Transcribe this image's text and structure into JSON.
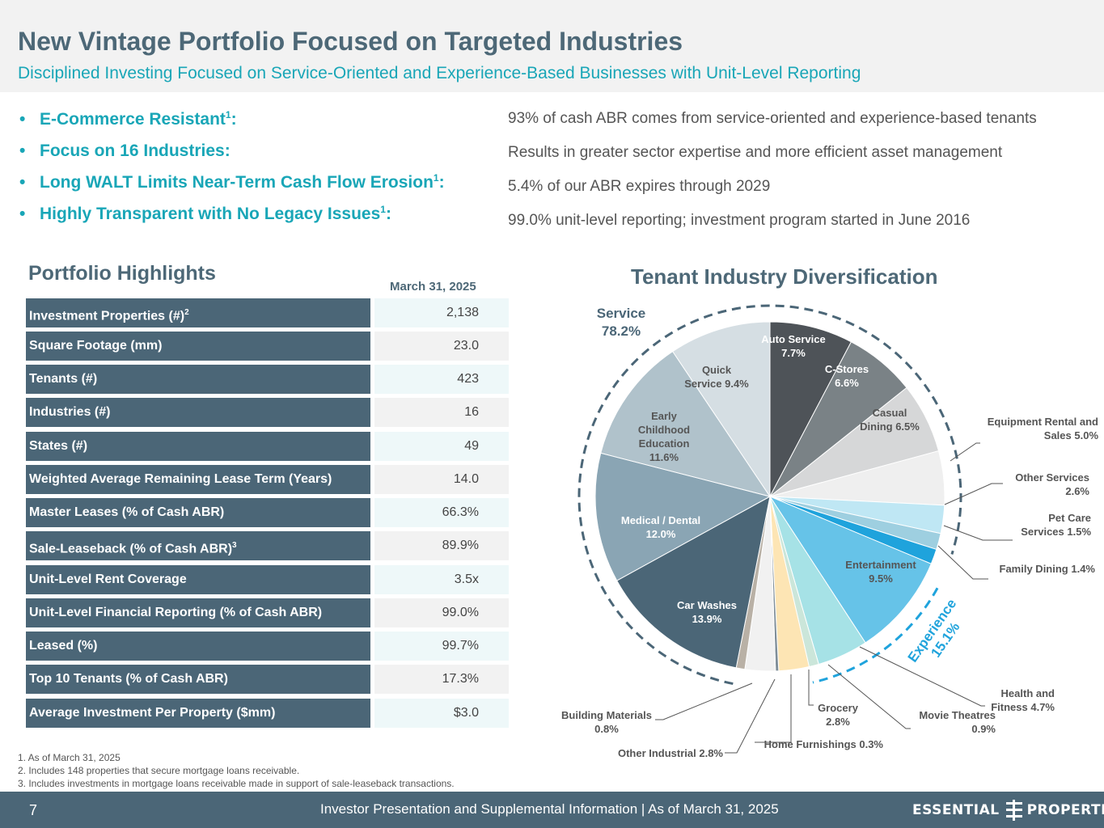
{
  "header": {
    "title": "New Vintage Portfolio Focused on Targeted Industries",
    "subtitle": "Disciplined Investing Focused on Service-Oriented and Experience-Based Businesses with Unit-Level Reporting"
  },
  "bullets": [
    {
      "label": "E-Commerce Resistant",
      "sup": "1",
      "text": "93% of cash ABR comes from service-oriented and experience-based tenants"
    },
    {
      "label": "Focus on 16 Industries:",
      "sup": "",
      "text": "Results in greater sector expertise and more efficient asset management"
    },
    {
      "label": "Long WALT Limits Near-Term Cash Flow Erosion",
      "sup": "1",
      "text": "5.4% of our ABR expires through 2029"
    },
    {
      "label": "Highly Transparent with No Legacy Issues",
      "sup": "1",
      "text": "99.0% unit-level reporting; investment program started in June 2016"
    }
  ],
  "highlights": {
    "title": "Portfolio Highlights",
    "date_header": "March 31, 2025",
    "rows": [
      {
        "label": "Investment Properties (#)",
        "sup": "2",
        "value": "2,138"
      },
      {
        "label": "Square Footage (mm)",
        "sup": "",
        "value": "23.0"
      },
      {
        "label": "Tenants (#)",
        "sup": "",
        "value": "423"
      },
      {
        "label": "Industries (#)",
        "sup": "",
        "value": "16"
      },
      {
        "label": "States (#)",
        "sup": "",
        "value": "49"
      },
      {
        "label": "Weighted Average Remaining Lease Term (Years)",
        "sup": "",
        "value": "14.0"
      },
      {
        "label": "Master Leases (% of Cash ABR)",
        "sup": "",
        "value": "66.3%"
      },
      {
        "label": "Sale-Leaseback (% of Cash ABR)",
        "sup": "3",
        "value": "89.9%"
      },
      {
        "label": "Unit-Level Rent Coverage",
        "sup": "",
        "value": "3.5x"
      },
      {
        "label": "Unit-Level Financial Reporting (% of Cash ABR)",
        "sup": "",
        "value": "99.0%"
      },
      {
        "label": "Leased (%)",
        "sup": "",
        "value": "99.7%"
      },
      {
        "label": "Top 10 Tenants (% of Cash ABR)",
        "sup": "",
        "value": "17.3%"
      },
      {
        "label": "Average Investment Per Property ($mm)",
        "sup": "",
        "value": "$3.0"
      }
    ]
  },
  "chart_data": {
    "type": "pie",
    "title": "Tenant Industry Diversification",
    "groups": [
      {
        "name": "Service",
        "value": "78.2%"
      },
      {
        "name": "Experience",
        "value": "15.1%"
      }
    ],
    "slices": [
      {
        "name": "Auto Service",
        "value": 7.7,
        "color": "#4e5358"
      },
      {
        "name": "C-Stores",
        "value": 6.6,
        "color": "#7a8286"
      },
      {
        "name": "Casual Dining",
        "value": 6.5,
        "color": "#d6d7d8"
      },
      {
        "name": "Equipment Rental and Sales",
        "value": 5.0,
        "color": "#efefef"
      },
      {
        "name": "Other Services",
        "value": 2.6,
        "color": "#bfe7f4"
      },
      {
        "name": "Pet Care Services",
        "value": 1.5,
        "color": "#9ecfe0"
      },
      {
        "name": "Family Dining",
        "value": 1.4,
        "color": "#1fa3dc"
      },
      {
        "name": "Entertainment",
        "value": 9.5,
        "color": "#66c3e8"
      },
      {
        "name": "Health and Fitness",
        "value": 4.7,
        "color": "#a6e2e6"
      },
      {
        "name": "Movie Theatres",
        "value": 0.9,
        "color": "#cbe6da"
      },
      {
        "name": "Grocery",
        "value": 2.8,
        "color": "#fde5b4"
      },
      {
        "name": "Home Furnishings",
        "value": 0.3,
        "color": "#7f8e98"
      },
      {
        "name": "Other Industrial",
        "value": 2.8,
        "color": "#f1f1f1"
      },
      {
        "name": "Building Materials",
        "value": 0.8,
        "color": "#b9b1a6"
      },
      {
        "name": "Car Washes",
        "value": 13.9,
        "color": "#4b6677"
      },
      {
        "name": "Medical / Dental",
        "value": 12.0,
        "color": "#8aa5b4"
      },
      {
        "name": "Early Childhood Education",
        "value": 11.6,
        "color": "#b0c2cb"
      },
      {
        "name": "Quick Service",
        "value": 9.4,
        "color": "#d5dee3"
      }
    ],
    "labels": [
      {
        "lines": [
          "Auto Service",
          "7.7%"
        ]
      },
      {
        "lines": [
          "C-Stores",
          "6.6%"
        ]
      },
      {
        "lines": [
          "Casual",
          "Dining 6.5%"
        ]
      },
      {
        "lines": [
          "Equipment Rental and",
          "Sales 5.0%"
        ]
      },
      {
        "lines": [
          "Other Services",
          "2.6%"
        ]
      },
      {
        "lines": [
          "Pet Care",
          "Services 1.5%"
        ]
      },
      {
        "lines": [
          "Family Dining 1.4%"
        ]
      },
      {
        "lines": [
          "Entertainment",
          "9.5%"
        ]
      },
      {
        "lines": [
          "Health and",
          "Fitness 4.7%"
        ]
      },
      {
        "lines": [
          "Movie Theatres",
          "0.9%"
        ]
      },
      {
        "lines": [
          "Grocery",
          "2.8%"
        ]
      },
      {
        "lines": [
          "Home Furnishings 0.3%"
        ]
      },
      {
        "lines": [
          "Other Industrial 2.8%"
        ]
      },
      {
        "lines": [
          "Building Materials",
          "0.8%"
        ]
      },
      {
        "lines": [
          "Car Washes",
          "13.9%"
        ]
      },
      {
        "lines": [
          "Medical  / Dental",
          "12.0%"
        ]
      },
      {
        "lines": [
          "Early",
          "Childhood",
          "Education",
          "11.6%"
        ]
      },
      {
        "lines": [
          "Quick",
          "Service 9.4%"
        ]
      }
    ]
  },
  "notes": [
    "1. As of March 31, 2025",
    "2. Includes 148 properties that secure mortgage loans receivable.",
    "3. Includes investments in mortgage loans receivable made in support of sale-leaseback transactions."
  ],
  "footer": {
    "page": "7",
    "text": "Investor Presentation and Supplemental Information |  As of March 31, 2025",
    "logo_left": "ESSENTIAL",
    "logo_right": "PROPERTIES"
  }
}
